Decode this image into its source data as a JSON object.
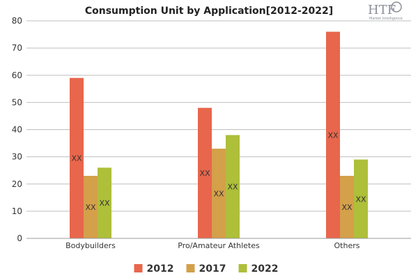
{
  "chart_data": {
    "type": "bar",
    "title": "Consumption Unit by  Application[2012-2022]",
    "categories": [
      "Bodybuilders",
      "Pro/Amateur Athletes",
      "Others"
    ],
    "series": [
      {
        "name": "2012",
        "values": [
          59,
          48,
          76
        ],
        "color": "#e8664c",
        "data_labels": [
          "XX",
          "XX",
          "XX"
        ]
      },
      {
        "name": "2017",
        "values": [
          23,
          33,
          23
        ],
        "color": "#d4a04a",
        "data_labels": [
          "XX",
          "XX",
          "XX"
        ]
      },
      {
        "name": "2022",
        "values": [
          26,
          38,
          29
        ],
        "color": "#aebf3a",
        "data_labels": [
          "XX",
          "XX",
          "XX"
        ]
      }
    ],
    "yticks": [
      0,
      10,
      20,
      30,
      40,
      50,
      60,
      70,
      80
    ],
    "ylim": [
      0,
      80
    ],
    "grid": true,
    "legend_position": "bottom"
  },
  "logo": {
    "main": "HTF",
    "sub": "Market Intelligence"
  }
}
